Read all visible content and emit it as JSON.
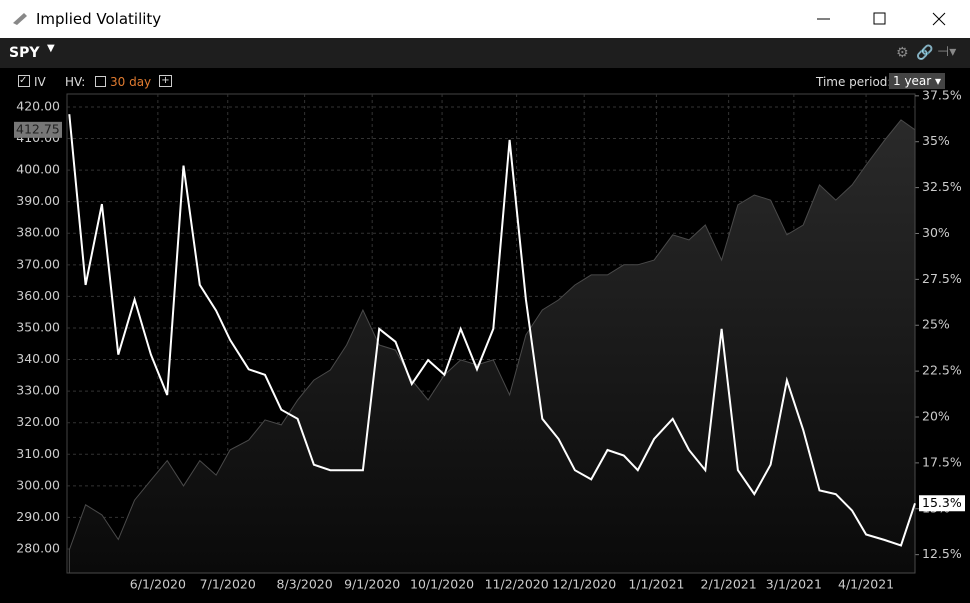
{
  "window": {
    "title": "Implied Volatility"
  },
  "toolbar": {
    "symbol": "SPY",
    "iv_label": "IV",
    "hv_label": "HV:",
    "hv_period": "30 day",
    "time_period_label": "Time period:",
    "time_period": "1 year"
  },
  "chart_data": {
    "type": "line",
    "x": [
      "4/24/2020",
      "5/1/2020",
      "5/8/2020",
      "5/15/2020",
      "5/22/2020",
      "5/29/2020",
      "6/5/2020",
      "6/12/2020",
      "6/19/2020",
      "6/26/2020",
      "7/2/2020",
      "7/10/2020",
      "7/17/2020",
      "7/24/2020",
      "7/31/2020",
      "8/7/2020",
      "8/14/2020",
      "8/21/2020",
      "8/28/2020",
      "9/4/2020",
      "9/11/2020",
      "9/18/2020",
      "9/25/2020",
      "10/2/2020",
      "10/9/2020",
      "10/16/2020",
      "10/23/2020",
      "10/30/2020",
      "11/6/2020",
      "11/13/2020",
      "11/20/2020",
      "11/27/2020",
      "12/4/2020",
      "12/11/2020",
      "12/18/2020",
      "12/24/2020",
      "12/31/2020",
      "1/8/2021",
      "1/15/2021",
      "1/22/2021",
      "1/29/2021",
      "2/5/2021",
      "2/12/2021",
      "2/19/2021",
      "2/26/2021",
      "3/5/2021",
      "3/12/2021",
      "3/19/2021",
      "3/26/2021",
      "4/1/2021",
      "4/9/2021",
      "4/16/2021",
      "4/22/2021"
    ],
    "series": [
      {
        "name": "SPY",
        "color": "#4a4a4a",
        "axis": "y",
        "values": [
          279.7,
          294,
          290.8,
          283,
          295.5,
          301.8,
          308,
          300,
          308,
          303.4,
          311.4,
          314.5,
          320.9,
          319.3,
          327.2,
          333.5,
          336.7,
          344.6,
          355.7,
          344.6,
          343,
          333.5,
          327.2,
          335.1,
          339.9,
          338.3,
          339.9,
          328.8,
          347.8,
          355.7,
          358.9,
          363.6,
          366.8,
          366.8,
          370,
          370,
          371.5,
          379.5,
          377.9,
          382.6,
          371.5,
          389,
          392.1,
          390.5,
          379.5,
          382.6,
          395.3,
          390.5,
          395.3,
          401.6,
          409.5,
          415.9,
          412.75
        ]
      },
      {
        "name": "IV",
        "color": "#ffffff",
        "axis": "y2",
        "values": [
          36.5,
          27.2,
          31.6,
          23.4,
          26.4,
          23.4,
          21.2,
          33.7,
          27.2,
          25.8,
          24.2,
          22.6,
          22.3,
          20.4,
          19.9,
          17.4,
          17.1,
          17.1,
          17.1,
          24.8,
          24.1,
          21.8,
          23.1,
          22.3,
          24.8,
          22.6,
          24.8,
          35.1,
          26.4,
          19.9,
          18.8,
          17.1,
          16.6,
          18.2,
          17.9,
          17.1,
          18.8,
          19.9,
          18.2,
          17.1,
          24.8,
          17.1,
          15.8,
          17.4,
          22,
          19.3,
          16,
          15.8,
          14.9,
          13.6,
          13.3,
          13,
          15.3
        ],
        "value_labels": [
          null,
          null,
          null,
          null,
          null,
          null,
          null,
          null,
          null,
          null,
          null,
          null,
          null,
          null,
          null,
          null,
          null,
          null,
          null,
          null,
          null,
          null,
          null,
          null,
          null,
          null,
          null,
          null,
          null,
          null,
          null,
          null,
          null,
          null,
          null,
          null,
          null,
          null,
          null,
          null,
          null,
          null,
          null,
          null,
          null,
          null,
          null,
          null,
          null,
          null,
          null,
          null,
          "15.3%"
        ]
      }
    ],
    "xlim": [
      "4/23/2020",
      "4/22/2021"
    ],
    "xticks": [
      "6/1/2020",
      "7/1/2020",
      "8/3/2020",
      "9/1/2020",
      "10/1/2020",
      "11/2/2020",
      "12/1/2020",
      "1/1/2021",
      "2/1/2021",
      "3/1/2021",
      "4/1/2021"
    ],
    "ylim": [
      272.4,
      424.1
    ],
    "yticks": [
      {
        "value": 280,
        "label": "280.00"
      },
      {
        "value": 290,
        "label": "290.00"
      },
      {
        "value": 300,
        "label": "300.00"
      },
      {
        "value": 310,
        "label": "310.00"
      },
      {
        "value": 320,
        "label": "320.00"
      },
      {
        "value": 330,
        "label": "330.00"
      },
      {
        "value": 340,
        "label": "340.00"
      },
      {
        "value": 350,
        "label": "350.00"
      },
      {
        "value": 360,
        "label": "360.00"
      },
      {
        "value": 370,
        "label": "370.00"
      },
      {
        "value": 380,
        "label": "380.00"
      },
      {
        "value": 390,
        "label": "390.00"
      },
      {
        "value": 400,
        "label": "400.00"
      },
      {
        "value": 410,
        "label": "410.00"
      },
      {
        "value": 420,
        "label": "420.00"
      }
    ],
    "y2lim": [
      11.5,
      37.6
    ],
    "y2ticks": [
      {
        "value": 12.5,
        "label": "12.5%"
      },
      {
        "value": 15,
        "label": "15%"
      },
      {
        "value": 17.5,
        "label": "17.5%"
      },
      {
        "value": 20,
        "label": "20%"
      },
      {
        "value": 22.5,
        "label": "22.5%"
      },
      {
        "value": 25,
        "label": "25%"
      },
      {
        "value": 27.5,
        "label": "27.5%"
      },
      {
        "value": 30,
        "label": "30%"
      },
      {
        "value": 32.5,
        "label": "32.5%"
      },
      {
        "value": 35,
        "label": "35%"
      },
      {
        "value": 37.5,
        "label": "37.5%"
      }
    ],
    "grid": true
  }
}
